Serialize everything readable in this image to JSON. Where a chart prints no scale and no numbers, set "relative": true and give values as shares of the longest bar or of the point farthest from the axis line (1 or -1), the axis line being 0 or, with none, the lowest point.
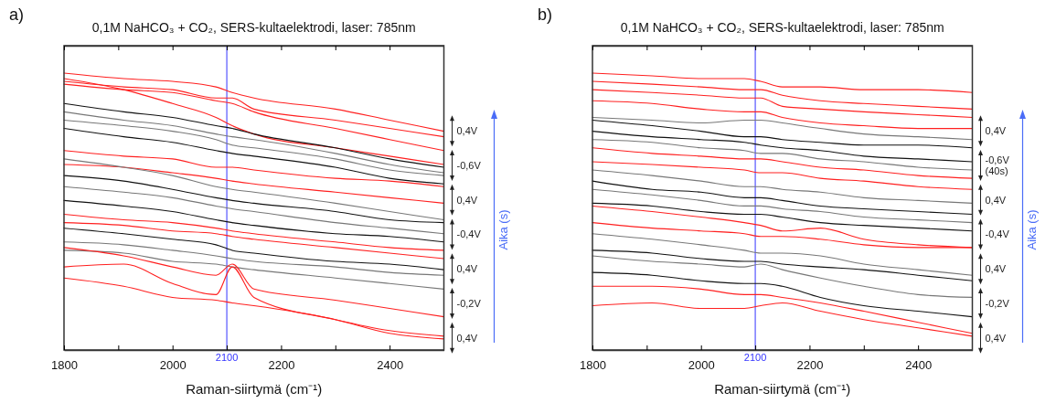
{
  "chart_data": [
    {
      "type": "line",
      "title": "0,1M NaHCO₃ + CO₂, SERS-kultaelektrodi, laser: 785nm",
      "xlabel": "Raman-siirtymä (cm⁻¹)",
      "relative": true,
      "x": [
        1800,
        1910,
        2000,
        2080,
        2110,
        2150,
        2300,
        2400,
        2500
      ],
      "xlim": [
        1800,
        2500
      ],
      "xticks": [
        1800,
        {
          "value": 1900,
          "label": null
        },
        2000,
        {
          "value": 2100,
          "label": null
        },
        2200,
        {
          "value": 2300,
          "label": null
        },
        2400
      ],
      "ref_lines": [
        {
          "axis": "x",
          "value": 2100,
          "label": "2100",
          "color": "#3333ff"
        }
      ],
      "annotations": [
        "a)",
        "0,4V",
        "-0,6V",
        "0,4V",
        "-0,4V",
        "0,4V",
        "-0,2V",
        "0,4V",
        "Aika (s)"
      ],
      "series": [
        {
          "color": "#ff2020",
          "values": [
            1.0,
            0.98,
            0.97,
            0.95,
            0.93,
            0.91,
            0.87,
            0.83,
            0.79
          ]
        },
        {
          "color": "#ff2020",
          "values": [
            0.97,
            0.95,
            0.94,
            0.91,
            0.91,
            0.87,
            0.83,
            0.8,
            0.77
          ]
        },
        {
          "color": "#ff2020",
          "values": [
            0.96,
            0.94,
            0.93,
            0.9,
            0.89,
            0.86,
            0.8,
            0.76,
            0.72
          ]
        },
        {
          "color": "#ff2020",
          "values": [
            0.98,
            0.94,
            0.89,
            0.84,
            0.81,
            0.78,
            0.73,
            0.7,
            0.67
          ]
        },
        {
          "color": "#111111",
          "values": [
            0.89,
            0.86,
            0.84,
            0.81,
            0.8,
            0.78,
            0.73,
            0.69,
            0.66
          ]
        },
        {
          "color": "#777777",
          "values": [
            0.86,
            0.83,
            0.81,
            0.78,
            0.77,
            0.76,
            0.71,
            0.67,
            0.64
          ]
        },
        {
          "color": "#777777",
          "values": [
            0.83,
            0.81,
            0.79,
            0.76,
            0.74,
            0.73,
            0.69,
            0.65,
            0.63
          ]
        },
        {
          "color": "#111111",
          "values": [
            0.8,
            0.77,
            0.75,
            0.72,
            0.71,
            0.7,
            0.66,
            0.62,
            0.6
          ]
        },
        {
          "color": "#ff2020",
          "values": [
            0.72,
            0.7,
            0.69,
            0.66,
            0.66,
            0.65,
            0.62,
            0.61,
            0.59
          ]
        },
        {
          "color": "#ff2020",
          "values": [
            0.67,
            0.66,
            0.64,
            0.62,
            0.61,
            0.6,
            0.57,
            0.55,
            0.53
          ]
        },
        {
          "color": "#777777",
          "values": [
            0.69,
            0.66,
            0.63,
            0.59,
            0.58,
            0.57,
            0.53,
            0.5,
            0.47
          ]
        },
        {
          "color": "#111111",
          "values": [
            0.63,
            0.61,
            0.58,
            0.55,
            0.54,
            0.53,
            0.5,
            0.47,
            0.46
          ]
        },
        {
          "color": "#777777",
          "values": [
            0.59,
            0.57,
            0.55,
            0.52,
            0.51,
            0.5,
            0.46,
            0.44,
            0.42
          ]
        },
        {
          "color": "#111111",
          "values": [
            0.54,
            0.52,
            0.5,
            0.47,
            0.46,
            0.45,
            0.42,
            0.41,
            0.39
          ]
        },
        {
          "color": "#ff2020",
          "values": [
            0.49,
            0.47,
            0.46,
            0.44,
            0.43,
            0.42,
            0.39,
            0.37,
            0.36
          ]
        },
        {
          "color": "#ff2020",
          "values": [
            0.46,
            0.45,
            0.43,
            0.42,
            0.41,
            0.4,
            0.37,
            0.35,
            0.33
          ]
        },
        {
          "color": "#111111",
          "values": [
            0.44,
            0.42,
            0.4,
            0.38,
            0.36,
            0.35,
            0.32,
            0.31,
            0.29
          ]
        },
        {
          "color": "#777777",
          "values": [
            0.39,
            0.38,
            0.36,
            0.34,
            0.33,
            0.32,
            0.3,
            0.28,
            0.27
          ]
        },
        {
          "color": "#777777",
          "values": [
            0.36,
            0.35,
            0.32,
            0.31,
            0.3,
            0.29,
            0.26,
            0.24,
            0.22
          ]
        },
        {
          "color": "#ff2020",
          "values": [
            0.37,
            0.34,
            0.3,
            0.27,
            0.31,
            0.22,
            0.18,
            0.15,
            0.12
          ]
        },
        {
          "color": "#ff2020",
          "values": [
            0.3,
            0.31,
            0.24,
            0.2,
            0.3,
            0.19,
            0.11,
            0.07,
            0.05
          ]
        },
        {
          "color": "#ff2020",
          "values": [
            0.26,
            0.23,
            0.19,
            0.18,
            0.17,
            0.16,
            0.11,
            0.06,
            0.04
          ]
        }
      ]
    },
    {
      "type": "line",
      "title": "0,1M NaHCO₃ + CO₂, SERS-kultaelektrodi, laser: 785nm",
      "xlabel": "Raman-siirtymä (cm⁻¹)",
      "relative": true,
      "x": [
        1800,
        1910,
        2000,
        2080,
        2110,
        2150,
        2220,
        2300,
        2400,
        2500
      ],
      "xlim": [
        1800,
        2500
      ],
      "xticks": [
        1800,
        {
          "value": 1900,
          "label": null
        },
        2000,
        {
          "value": 2100,
          "label": null
        },
        2200,
        {
          "value": 2300,
          "label": null
        },
        2400
      ],
      "ref_lines": [
        {
          "axis": "x",
          "value": 2100,
          "label": "2100",
          "color": "#3333ff"
        }
      ],
      "annotations": [
        "b)",
        "0,4V",
        "-0,6V (40s)",
        "0,4V",
        "-0,4V",
        "0,4V",
        "-0,2V",
        "0,4V",
        "Aika (s)"
      ],
      "series": [
        {
          "color": "#ff2020",
          "values": [
            1.0,
            0.99,
            0.98,
            0.98,
            0.97,
            0.95,
            0.95,
            0.94,
            0.94,
            0.93
          ]
        },
        {
          "color": "#ff2020",
          "values": [
            0.97,
            0.96,
            0.95,
            0.94,
            0.94,
            0.92,
            0.9,
            0.89,
            0.88,
            0.87
          ]
        },
        {
          "color": "#ff2020",
          "values": [
            0.94,
            0.93,
            0.92,
            0.91,
            0.91,
            0.88,
            0.87,
            0.86,
            0.85,
            0.84
          ]
        },
        {
          "color": "#ff2020",
          "values": [
            0.9,
            0.89,
            0.87,
            0.86,
            0.86,
            0.84,
            0.82,
            0.81,
            0.8,
            0.8
          ]
        },
        {
          "color": "#777777",
          "values": [
            0.84,
            0.83,
            0.82,
            0.83,
            0.83,
            0.82,
            0.8,
            0.78,
            0.77,
            0.76
          ]
        },
        {
          "color": "#111111",
          "values": [
            0.83,
            0.81,
            0.79,
            0.77,
            0.77,
            0.76,
            0.75,
            0.74,
            0.74,
            0.73
          ]
        },
        {
          "color": "#111111",
          "values": [
            0.79,
            0.77,
            0.76,
            0.75,
            0.74,
            0.73,
            0.72,
            0.7,
            0.69,
            0.68
          ]
        },
        {
          "color": "#777777",
          "values": [
            0.76,
            0.75,
            0.73,
            0.72,
            0.71,
            0.71,
            0.69,
            0.68,
            0.66,
            0.65
          ]
        },
        {
          "color": "#ff2020",
          "values": [
            0.73,
            0.71,
            0.7,
            0.69,
            0.69,
            0.68,
            0.66,
            0.65,
            0.63,
            0.62
          ]
        },
        {
          "color": "#ff2020",
          "values": [
            0.68,
            0.67,
            0.66,
            0.65,
            0.64,
            0.64,
            0.62,
            0.61,
            0.59,
            0.58
          ]
        },
        {
          "color": "#777777",
          "values": [
            0.65,
            0.63,
            0.61,
            0.59,
            0.59,
            0.58,
            0.57,
            0.55,
            0.54,
            0.53
          ]
        },
        {
          "color": "#111111",
          "values": [
            0.61,
            0.58,
            0.57,
            0.55,
            0.55,
            0.54,
            0.52,
            0.51,
            0.5,
            0.49
          ]
        },
        {
          "color": "#777777",
          "values": [
            0.58,
            0.56,
            0.54,
            0.52,
            0.52,
            0.51,
            0.5,
            0.48,
            0.47,
            0.46
          ]
        },
        {
          "color": "#111111",
          "values": [
            0.53,
            0.52,
            0.5,
            0.49,
            0.49,
            0.48,
            0.46,
            0.45,
            0.44,
            0.43
          ]
        },
        {
          "color": "#ff2020",
          "values": [
            0.52,
            0.5,
            0.48,
            0.46,
            0.45,
            0.43,
            0.44,
            0.4,
            0.38,
            0.37
          ]
        },
        {
          "color": "#ff2020",
          "values": [
            0.46,
            0.44,
            0.43,
            0.42,
            0.41,
            0.41,
            0.4,
            0.38,
            0.37,
            0.37
          ]
        },
        {
          "color": "#777777",
          "values": [
            0.42,
            0.4,
            0.38,
            0.36,
            0.35,
            0.35,
            0.34,
            0.31,
            0.29,
            0.27
          ]
        },
        {
          "color": "#111111",
          "values": [
            0.36,
            0.35,
            0.33,
            0.32,
            0.32,
            0.31,
            0.3,
            0.29,
            0.27,
            0.25
          ]
        },
        {
          "color": "#777777",
          "values": [
            0.34,
            0.32,
            0.31,
            0.3,
            0.31,
            0.29,
            0.26,
            0.23,
            0.2,
            0.19
          ]
        },
        {
          "color": "#111111",
          "values": [
            0.28,
            0.27,
            0.25,
            0.24,
            0.24,
            0.23,
            0.19,
            0.16,
            0.14,
            0.12
          ]
        },
        {
          "color": "#ff2020",
          "values": [
            0.23,
            0.23,
            0.22,
            0.2,
            0.2,
            0.19,
            0.17,
            0.14,
            0.1,
            0.06
          ]
        },
        {
          "color": "#ff2020",
          "values": [
            0.16,
            0.17,
            0.15,
            0.15,
            0.16,
            0.17,
            0.14,
            0.11,
            0.08,
            0.05
          ]
        }
      ]
    }
  ]
}
